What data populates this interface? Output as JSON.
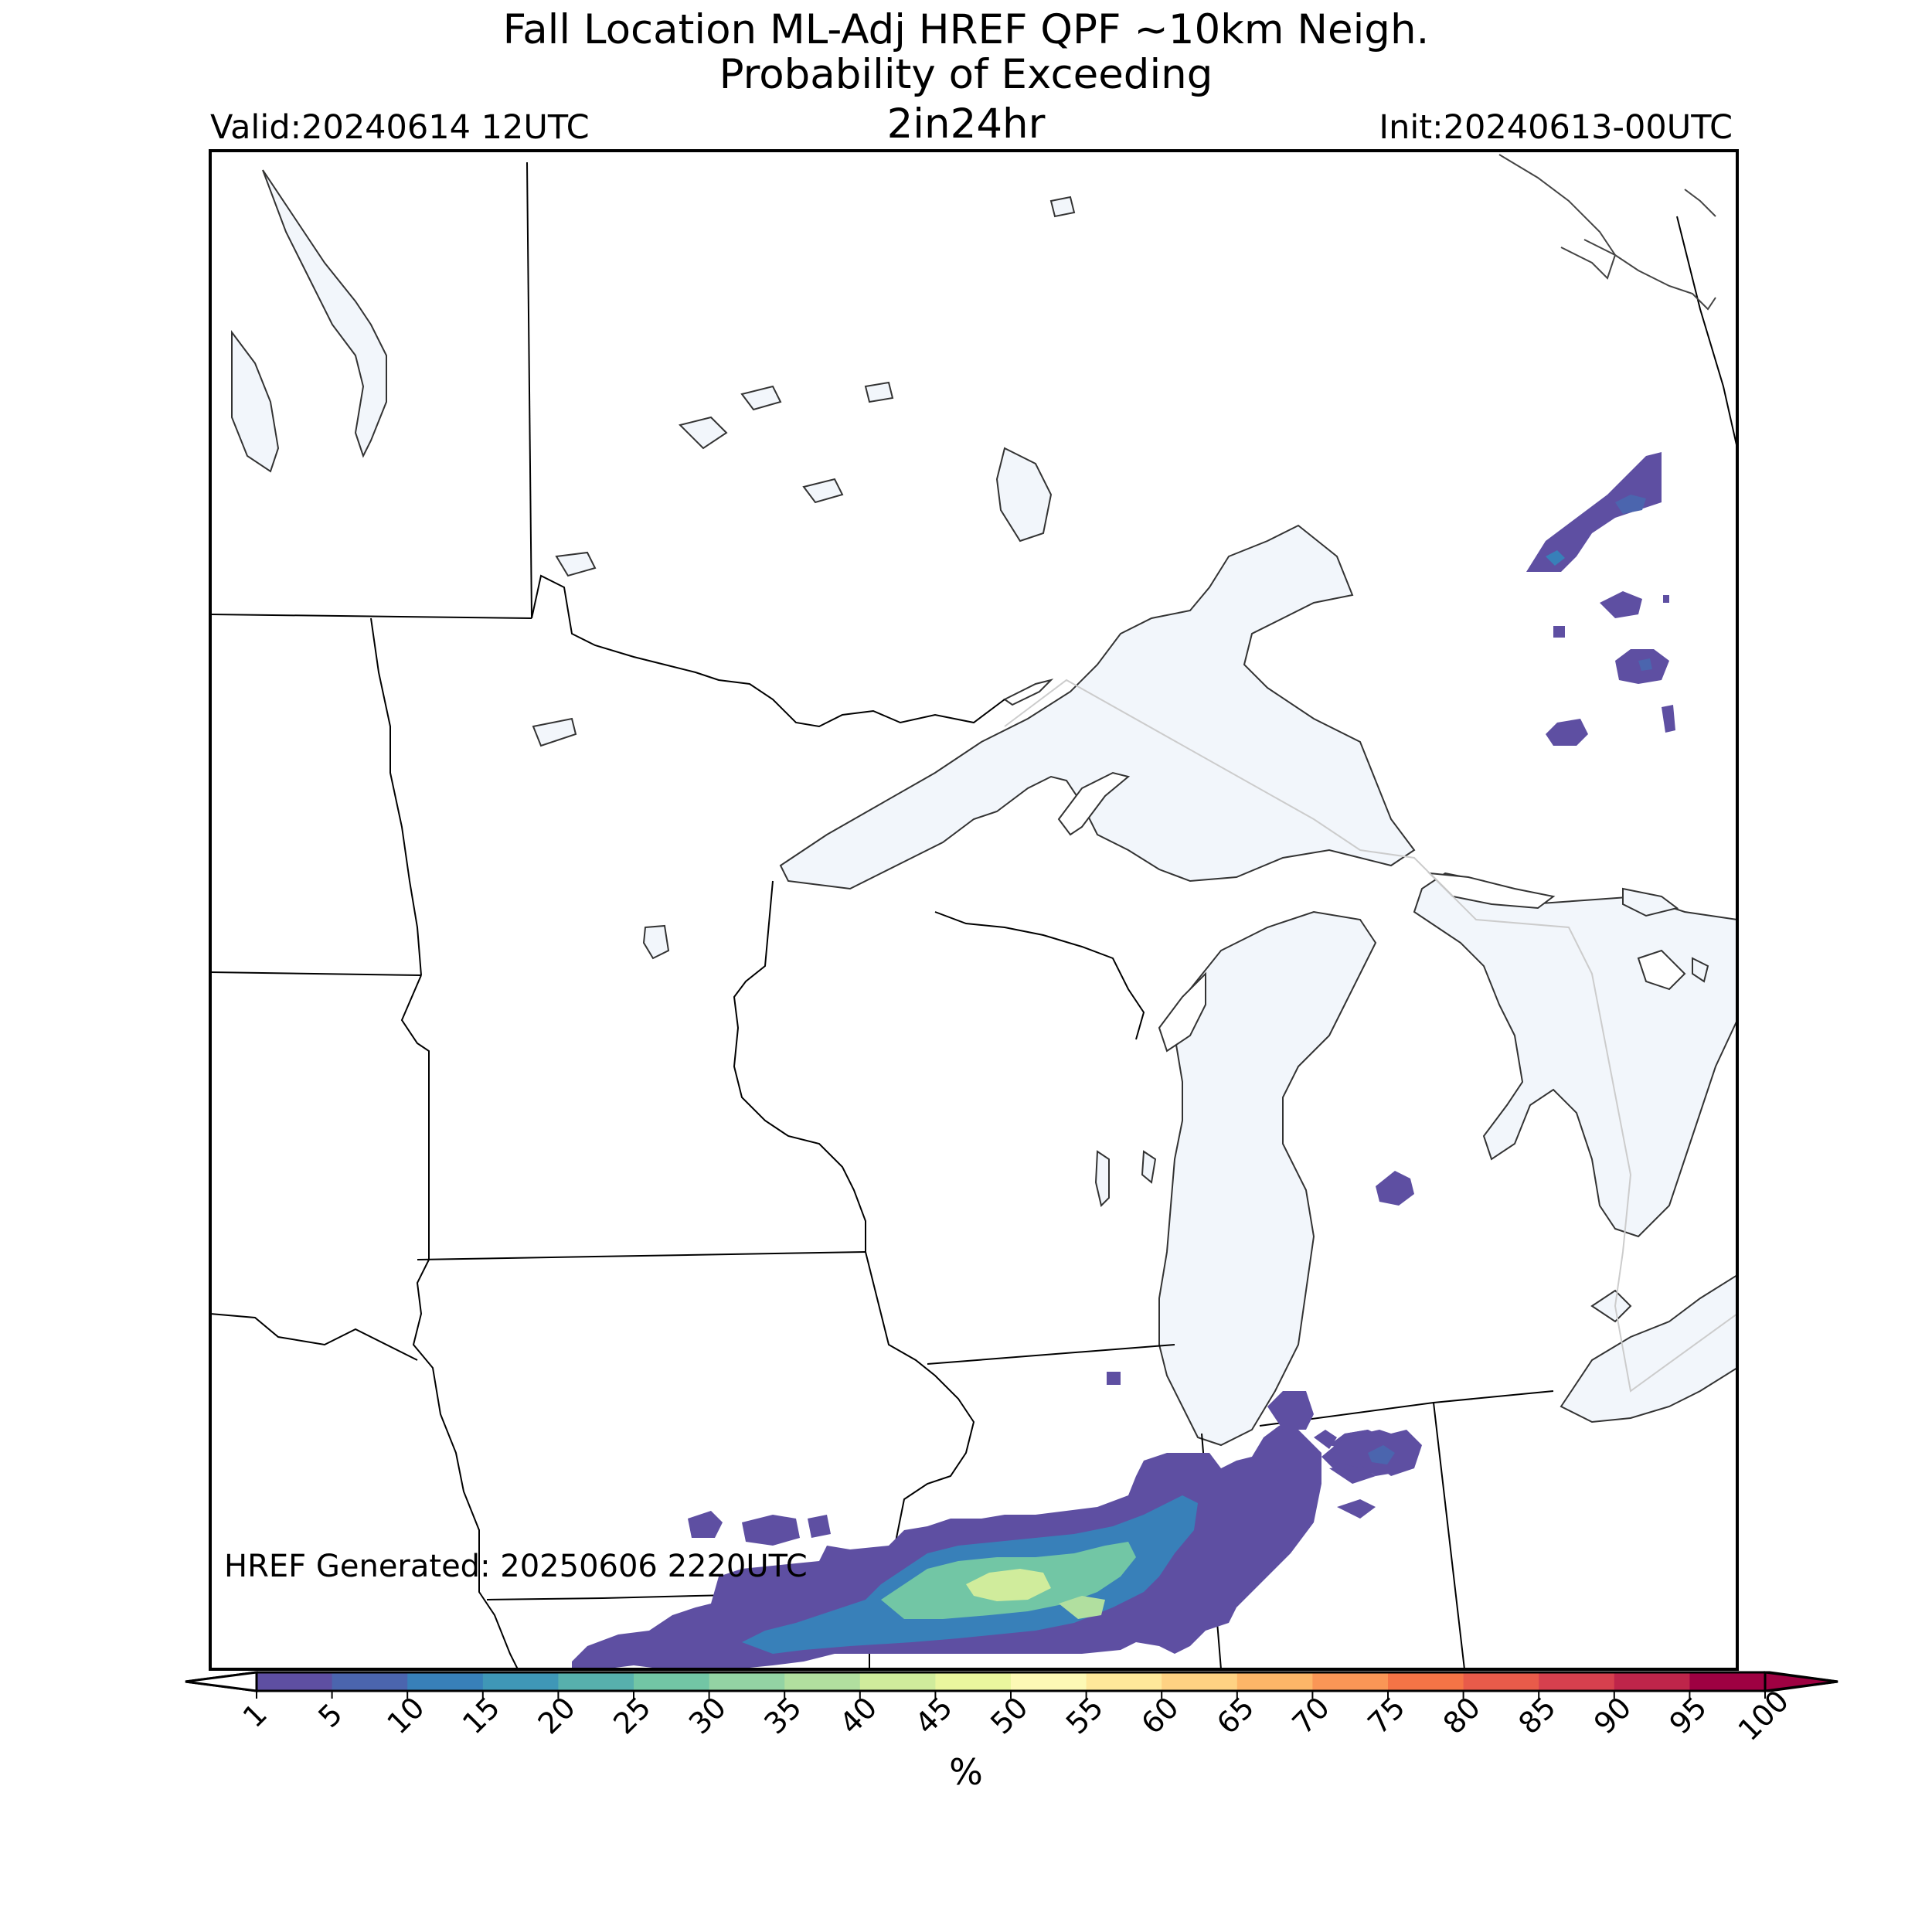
{
  "title": {
    "line1": "Fall Location ML-Adj HREF QPF ~10km Neigh.",
    "line2": "Probability of Exceeding",
    "line3": "2in24hr"
  },
  "valid": "Valid:20240614 12UTC",
  "init": "Init:20240613-00UTC",
  "generated": "HREF Generated: 20250606 2220UTC",
  "colorbar": {
    "unit": "%",
    "ticks": [
      "1",
      "5",
      "10",
      "15",
      "20",
      "25",
      "30",
      "35",
      "40",
      "45",
      "50",
      "55",
      "60",
      "65",
      "70",
      "75",
      "80",
      "85",
      "90",
      "95",
      "100"
    ],
    "colors": [
      "#5e4fa2",
      "#4b65ae",
      "#3880b9",
      "#3f97b7",
      "#57b0ad",
      "#72c6a5",
      "#93d3a4",
      "#b1df9f",
      "#d0ec9c",
      "#eaf69e",
      "#fcf9b5",
      "#fee89a",
      "#fed283",
      "#fdb668",
      "#fa9656",
      "#f57446",
      "#e85b4a",
      "#d6404e",
      "#be254a",
      "#9e0142"
    ],
    "extend": "both",
    "range": [
      1,
      100
    ]
  },
  "map": {
    "projection": "lambert-conformal",
    "region": "Upper Midwest / Great Lakes",
    "colors": {
      "lake_fill": "#f2f6fb",
      "border_line": "#000000",
      "coast_line": "#333333"
    },
    "probability_areas": [
      {
        "region": "northern Illinois / Indiana band",
        "max_percent": 45
      },
      {
        "region": "northwest Ohio",
        "max_percent": 5
      },
      {
        "region": "central lower Michigan",
        "max_percent": 5
      },
      {
        "region": "northern Ontario",
        "max_percent": 10
      },
      {
        "region": "northern Illinois cell",
        "max_percent": 5
      }
    ]
  }
}
